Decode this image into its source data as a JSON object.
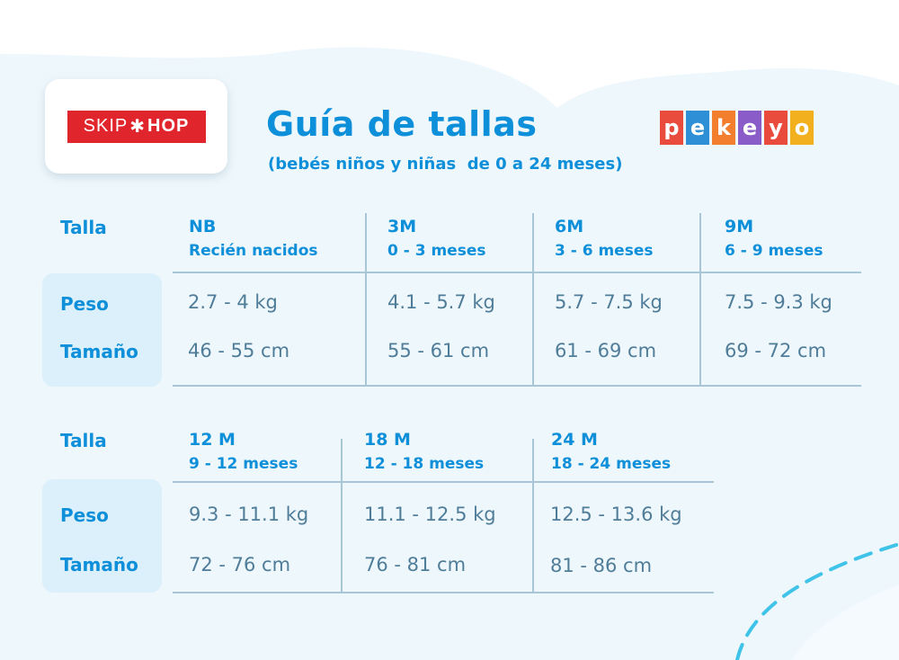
{
  "brand_left": {
    "part1": "SKIP",
    "star": "✱",
    "part2": "HOP"
  },
  "brand_right": {
    "letters": [
      "p",
      "e",
      "k",
      "e",
      "y",
      "o"
    ],
    "colors": [
      "#e94b3c",
      "#2f8fd6",
      "#f27e2e",
      "#8a5cc7",
      "#e94b3c",
      "#f2b01e"
    ]
  },
  "header": {
    "title": "Guía de tallas",
    "subtitle": "(bebés niños y niñas  de 0 a 24 meses)"
  },
  "labels": {
    "talla": "Talla",
    "peso": "Peso",
    "tamano": "Tamaño"
  },
  "tables": [
    {
      "columns": [
        {
          "size": "NB",
          "range": "Recién nacidos",
          "peso": "2.7 - 4 kg",
          "tamano": "46 - 55 cm"
        },
        {
          "size": "3M",
          "range": "0 - 3 meses",
          "peso": "4.1 - 5.7 kg",
          "tamano": "55 - 61 cm"
        },
        {
          "size": "6M",
          "range": "3 - 6 meses",
          "peso": "5.7 - 7.5 kg",
          "tamano": "61 - 69 cm"
        },
        {
          "size": "9M",
          "range": "6 - 9 meses",
          "peso": "7.5 - 9.3 kg",
          "tamano": "69 - 72 cm"
        }
      ]
    },
    {
      "columns": [
        {
          "size": "12 M",
          "range": "9 - 12 meses",
          "peso": "9.3 - 11.1 kg",
          "tamano": "72 - 76 cm"
        },
        {
          "size": "18 M",
          "range": "12 - 18 meses",
          "peso": "11.1 - 12.5 kg",
          "tamano": "76 - 81 cm"
        },
        {
          "size": "24 M",
          "range": "18 - 24 meses",
          "peso": "12.5 - 13.6 kg",
          "tamano": "81 - 86 cm"
        }
      ]
    }
  ],
  "colors": {
    "accent": "#0e8fd9",
    "text": "#4f7d99",
    "highlight": "#dcf0fb",
    "line": "#a9c6d6"
  }
}
